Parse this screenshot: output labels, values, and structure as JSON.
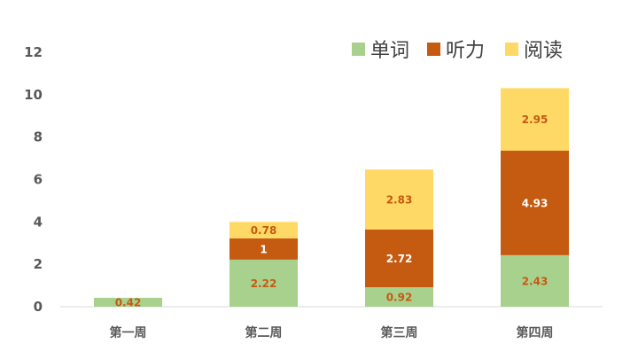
{
  "chart_data": {
    "type": "bar",
    "stacked": true,
    "categories": [
      "第一周",
      "第二周",
      "第三周",
      "第四周"
    ],
    "series": [
      {
        "name": "单词",
        "color": "#A9D18E",
        "values": [
          0.42,
          2.22,
          0.92,
          2.43
        ],
        "labels": [
          "0.42",
          "2.22",
          "0.92",
          "2.43"
        ],
        "label_color": "#C55A11"
      },
      {
        "name": "听力",
        "color": "#C55A11",
        "values": [
          0,
          1,
          2.72,
          4.93
        ],
        "labels": [
          "",
          "1",
          "2.72",
          "4.93"
        ],
        "label_color": "#FFFFFF"
      },
      {
        "name": "阅读",
        "color": "#FFD966",
        "values": [
          0,
          0.78,
          2.83,
          2.95
        ],
        "labels": [
          "",
          "0.78",
          "2.83",
          "2.95"
        ],
        "label_color": "#C55A11"
      }
    ],
    "ylim": [
      0,
      12
    ],
    "yticks": [
      "0",
      "2",
      "4",
      "6",
      "8",
      "10",
      "12"
    ],
    "grid": false,
    "legend_position": "top-right",
    "title": "",
    "xlabel": "",
    "ylabel": ""
  }
}
